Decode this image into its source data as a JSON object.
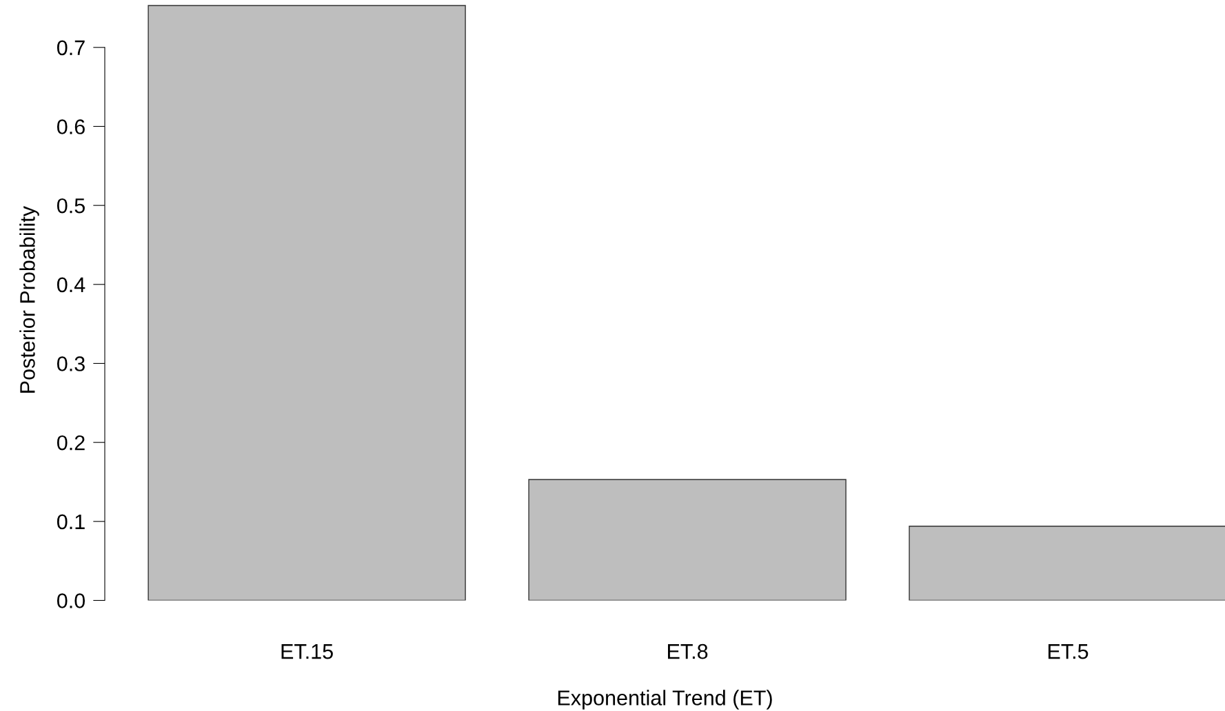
{
  "chart_data": {
    "type": "bar",
    "xlabel": "Exponential Trend (ET)",
    "ylabel": "Posterior Probability",
    "categories": [
      "ET.15",
      "ET.8",
      "ET.5"
    ],
    "values": [
      0.753,
      0.153,
      0.094
    ],
    "color": "#bebebe",
    "ylim": [
      0,
      0.76
    ],
    "yticks": [
      {
        "value": 0,
        "label": "0.0"
      },
      0.1,
      0.2,
      0.3,
      0.4,
      0.5,
      0.6,
      0.7
    ],
    "grid": false
  }
}
